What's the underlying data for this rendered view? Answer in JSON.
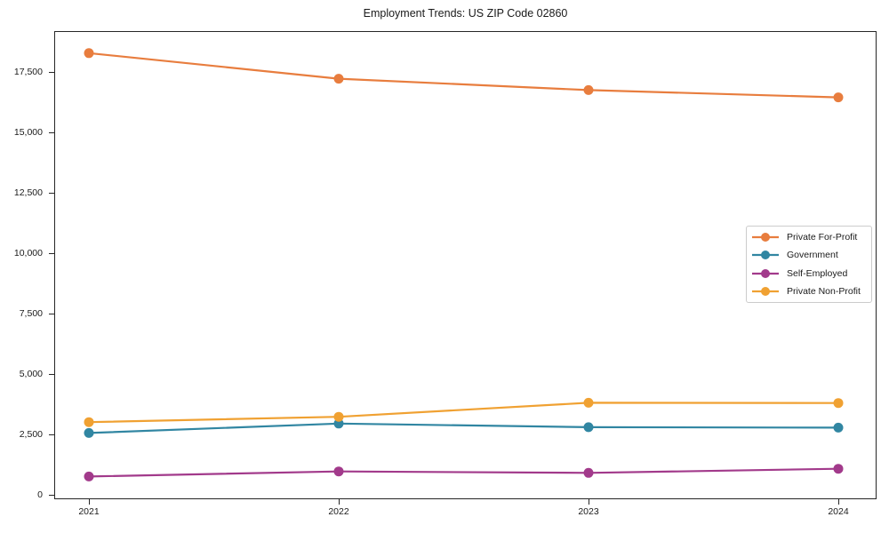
{
  "chart_data": {
    "type": "line",
    "title": "Employment Trends: US ZIP Code 02860",
    "xlabel": "",
    "ylabel": "",
    "categories": [
      "2021",
      "2022",
      "2023",
      "2024"
    ],
    "series": [
      {
        "name": "Private For-Profit",
        "color": "#E87D3E",
        "values": [
          18300,
          17240,
          16770,
          16470
        ]
      },
      {
        "name": "Government",
        "color": "#3186A2",
        "values": [
          2590,
          2980,
          2830,
          2810
        ]
      },
      {
        "name": "Self-Employed",
        "color": "#A23A8B",
        "values": [
          790,
          1000,
          940,
          1110
        ]
      },
      {
        "name": "Private Non-Profit",
        "color": "#F0A132",
        "values": [
          3040,
          3260,
          3840,
          3830
        ]
      }
    ],
    "yticks": [
      0,
      2500,
      5000,
      7500,
      10000,
      12500,
      15000,
      17500
    ],
    "ytick_labels": [
      "0",
      "2,500",
      "5,000",
      "7,500",
      "10,000",
      "12,500",
      "15,000",
      "17,500"
    ],
    "ylim": [
      -150,
      19210
    ],
    "grid": false,
    "marker": "circle",
    "legend_position": "right-middle",
    "spine_color": "#262626",
    "background_color": "#ffffff"
  }
}
